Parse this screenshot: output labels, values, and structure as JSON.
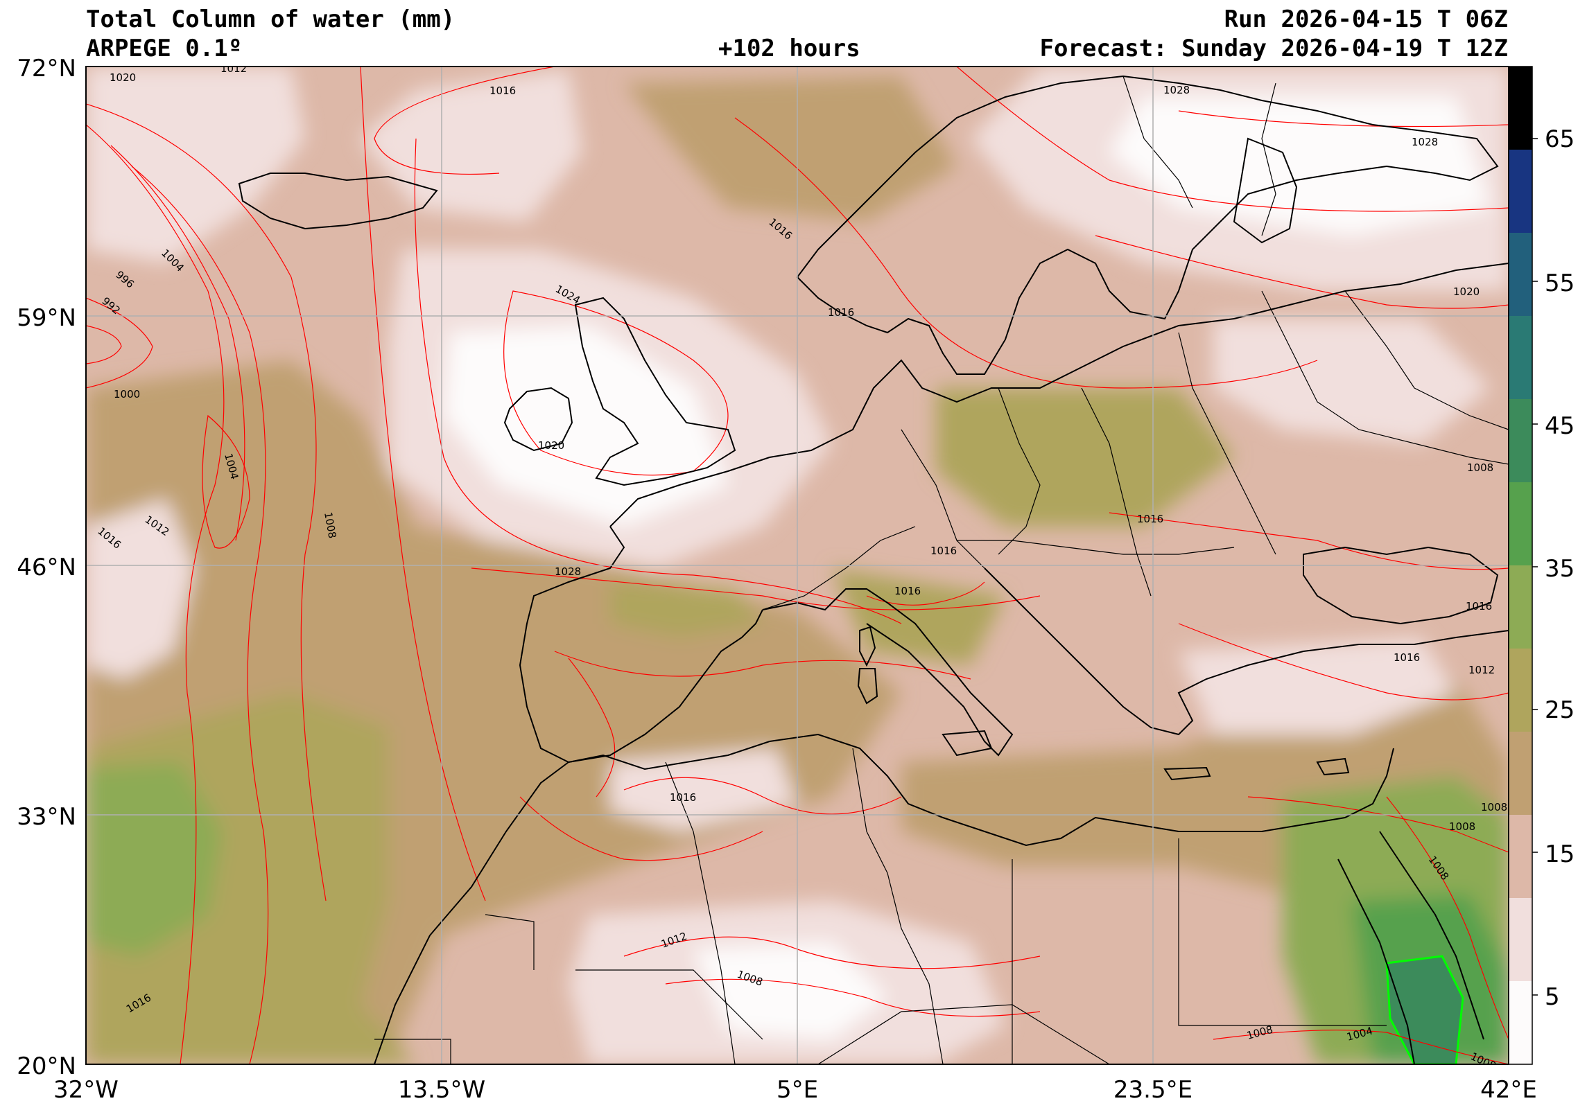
{
  "header": {
    "title": "Total Column of water (mm)",
    "model": "ARPEGE 0.1º",
    "lead_time": "+102 hours",
    "run": "Run 2026-04-15 T 06Z",
    "forecast": "Forecast: Sunday 2026-04-19 T 12Z"
  },
  "axes": {
    "lat_ticks": [
      "72°N",
      "59°N",
      "46°N",
      "33°N",
      "20°N"
    ],
    "lon_ticks": [
      "32°W",
      "13.5°W",
      "5°E",
      "23.5°E",
      "42°E"
    ]
  },
  "colorbar": {
    "labels": [
      "65",
      "55",
      "45",
      "35",
      "25",
      "15",
      "5"
    ],
    "colors": [
      "#fdfbfb",
      "#f1dfdd",
      "#ddb8a8",
      "#c0a072",
      "#afa55d",
      "#8dab55",
      "#56a14d",
      "#3c8b5b",
      "#2a7a74",
      "#22607c",
      "#183581",
      "#000000"
    ]
  },
  "isobar_labels": [
    "1020",
    "1012",
    "1016",
    "1028",
    "1028",
    "1004",
    "996",
    "992",
    "1000",
    "1004",
    "1024",
    "1016",
    "1016",
    "1012",
    "1008",
    "1016",
    "1020",
    "1028",
    "1016",
    "1016",
    "1016",
    "1020",
    "1008",
    "1016",
    "1016",
    "1012",
    "1008",
    "1008",
    "1008",
    "1016",
    "1012",
    "1008",
    "1008",
    "1004",
    "1008",
    "1016"
  ],
  "colors": {
    "isobar": "#ff0000",
    "coastline": "#000000",
    "highlight_contour": "#00ff00",
    "grid": "#b0b0b0"
  }
}
